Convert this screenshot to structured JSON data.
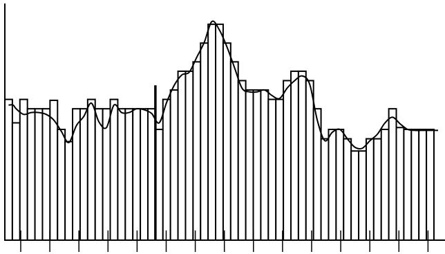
{
  "chart_data": {
    "type": "bar",
    "title": "",
    "xlabel": "",
    "ylabel": "",
    "grid": false,
    "legend": "none",
    "ylim": [
      0,
      250
    ],
    "bar_values": [
      150,
      125,
      150,
      140,
      140,
      140,
      149,
      118,
      105,
      140,
      140,
      150,
      140,
      140,
      150,
      140,
      140,
      140,
      140,
      140,
      118,
      150,
      160,
      180,
      180,
      190,
      210,
      230,
      230,
      210,
      190,
      170,
      160,
      160,
      160,
      150,
      150,
      170,
      180,
      180,
      170,
      140,
      108,
      118,
      118,
      108,
      95,
      95,
      108,
      108,
      118,
      140,
      120,
      118,
      118,
      118,
      118
    ],
    "smooth_line": [
      144,
      140,
      134,
      136,
      136,
      134,
      128,
      116,
      104,
      122,
      132,
      146,
      126,
      120,
      144,
      136,
      136,
      140,
      139,
      135,
      125,
      147,
      165,
      176,
      179,
      195,
      211,
      233,
      224,
      206,
      184,
      162,
      158,
      158,
      160,
      154,
      151,
      162,
      170,
      175,
      166,
      128,
      106,
      115,
      118,
      108,
      99,
      98,
      106,
      113,
      125,
      131,
      124,
      118,
      117,
      117,
      117
    ],
    "marker_index": 19,
    "marker_value": 165,
    "x_tick_count": 15,
    "colors": {
      "stroke": "#000000",
      "fill": "#ffffff"
    }
  }
}
